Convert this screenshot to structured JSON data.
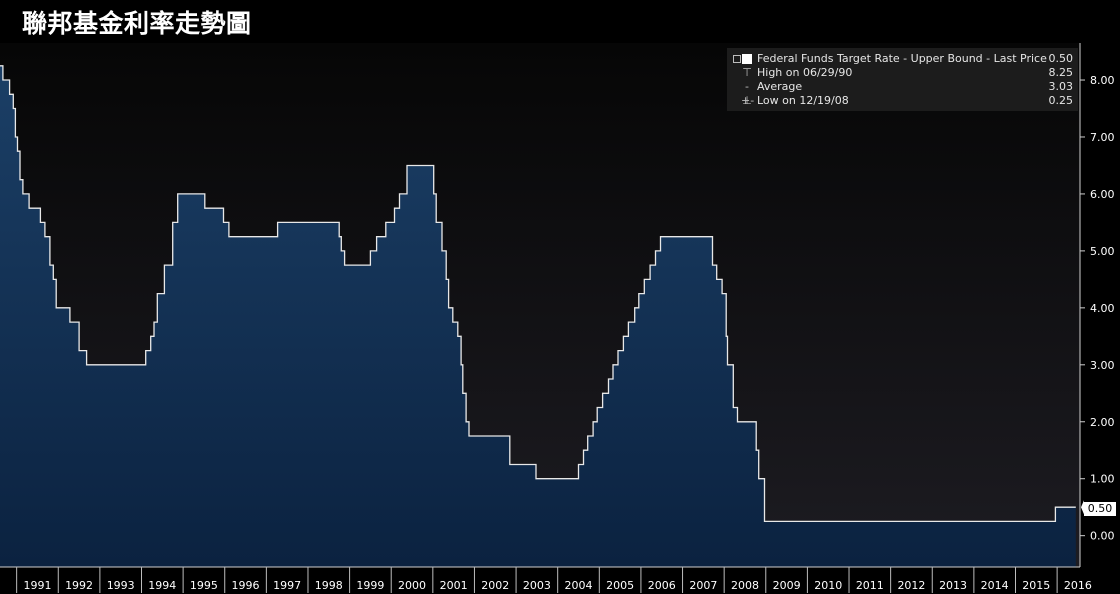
{
  "title": "聯邦基金利率走勢圖",
  "legend": {
    "series_label": "Federal Funds Target Rate - Upper Bound - Last Price",
    "series_value": "0.50",
    "high_label": "High on 06/29/90",
    "high_value": "8.25",
    "avg_label": "Average",
    "avg_value": "3.03",
    "low_label": "Low on 12/19/08",
    "low_value": "0.25"
  },
  "last_price_badge": "0.50",
  "colors": {
    "background": "#000000",
    "plot_gradient_top": "#060606",
    "plot_gradient_bottom": "#1d1c22",
    "area_fill_top": "#1b3f66",
    "area_fill_bottom": "#0b2240",
    "line": "#e8e8e8",
    "axis_text": "#ffffff",
    "legend_bg": "#1c1c1c"
  },
  "chart_data": {
    "type": "area",
    "title": "聯邦基金利率走勢圖",
    "series_name": "Federal Funds Target Rate - Upper Bound - Last Price",
    "xlim": [
      1990.6,
      2016.55
    ],
    "ylim": [
      -0.55,
      8.65
    ],
    "yticks": [
      0,
      1,
      2,
      3,
      4,
      5,
      6,
      7,
      8
    ],
    "ytick_labels": [
      "0.00",
      "1.00",
      "2.00",
      "3.00",
      "4.00",
      "5.00",
      "6.00",
      "7.00",
      "8.00"
    ],
    "xtick_labels": [
      "1991",
      "1992",
      "1993",
      "1994",
      "1995",
      "1996",
      "1997",
      "1998",
      "1999",
      "2000",
      "2001",
      "2002",
      "2003",
      "2004",
      "2005",
      "2006",
      "2007",
      "2008",
      "2009",
      "2010",
      "2011",
      "2012",
      "2013",
      "2014",
      "2015",
      "2016"
    ],
    "grid": false,
    "legend_position": "top-right",
    "step": true,
    "points": [
      [
        1990.6,
        8.25
      ],
      [
        1990.67,
        8.0
      ],
      [
        1990.83,
        7.75
      ],
      [
        1990.92,
        7.5
      ],
      [
        1990.97,
        7.0
      ],
      [
        1991.02,
        6.75
      ],
      [
        1991.08,
        6.25
      ],
      [
        1991.15,
        6.0
      ],
      [
        1991.3,
        5.75
      ],
      [
        1991.57,
        5.5
      ],
      [
        1991.68,
        5.25
      ],
      [
        1991.8,
        4.75
      ],
      [
        1991.88,
        4.5
      ],
      [
        1991.95,
        4.0
      ],
      [
        1992.28,
        3.75
      ],
      [
        1992.5,
        3.25
      ],
      [
        1992.68,
        3.0
      ],
      [
        1994.1,
        3.25
      ],
      [
        1994.22,
        3.5
      ],
      [
        1994.3,
        3.75
      ],
      [
        1994.38,
        4.25
      ],
      [
        1994.55,
        4.75
      ],
      [
        1994.75,
        5.5
      ],
      [
        1994.87,
        6.0
      ],
      [
        1995.1,
        6.0
      ],
      [
        1995.52,
        5.75
      ],
      [
        1995.97,
        5.5
      ],
      [
        1996.1,
        5.25
      ],
      [
        1997.27,
        5.5
      ],
      [
        1998.75,
        5.25
      ],
      [
        1998.8,
        5.0
      ],
      [
        1998.88,
        4.75
      ],
      [
        1999.5,
        5.0
      ],
      [
        1999.65,
        5.25
      ],
      [
        1999.87,
        5.5
      ],
      [
        2000.08,
        5.75
      ],
      [
        2000.2,
        6.0
      ],
      [
        2000.38,
        6.5
      ],
      [
        2001.02,
        6.0
      ],
      [
        2001.08,
        5.5
      ],
      [
        2001.22,
        5.0
      ],
      [
        2001.32,
        4.5
      ],
      [
        2001.38,
        4.0
      ],
      [
        2001.48,
        3.75
      ],
      [
        2001.6,
        3.5
      ],
      [
        2001.68,
        3.0
      ],
      [
        2001.72,
        2.5
      ],
      [
        2001.8,
        2.0
      ],
      [
        2001.87,
        1.75
      ],
      [
        2002.85,
        1.25
      ],
      [
        2003.48,
        1.0
      ],
      [
        2004.5,
        1.25
      ],
      [
        2004.62,
        1.5
      ],
      [
        2004.72,
        1.75
      ],
      [
        2004.85,
        2.0
      ],
      [
        2004.95,
        2.25
      ],
      [
        2005.08,
        2.5
      ],
      [
        2005.22,
        2.75
      ],
      [
        2005.33,
        3.0
      ],
      [
        2005.45,
        3.25
      ],
      [
        2005.58,
        3.5
      ],
      [
        2005.7,
        3.75
      ],
      [
        2005.85,
        4.0
      ],
      [
        2005.95,
        4.25
      ],
      [
        2006.08,
        4.5
      ],
      [
        2006.22,
        4.75
      ],
      [
        2006.35,
        5.0
      ],
      [
        2006.47,
        5.25
      ],
      [
        2007.72,
        4.75
      ],
      [
        2007.82,
        4.5
      ],
      [
        2007.95,
        4.25
      ],
      [
        2008.05,
        3.5
      ],
      [
        2008.08,
        3.0
      ],
      [
        2008.22,
        2.25
      ],
      [
        2008.32,
        2.0
      ],
      [
        2008.77,
        1.5
      ],
      [
        2008.83,
        1.0
      ],
      [
        2008.97,
        0.25
      ],
      [
        2015.96,
        0.5
      ],
      [
        2016.45,
        0.5
      ]
    ],
    "last_price": 0.5
  }
}
